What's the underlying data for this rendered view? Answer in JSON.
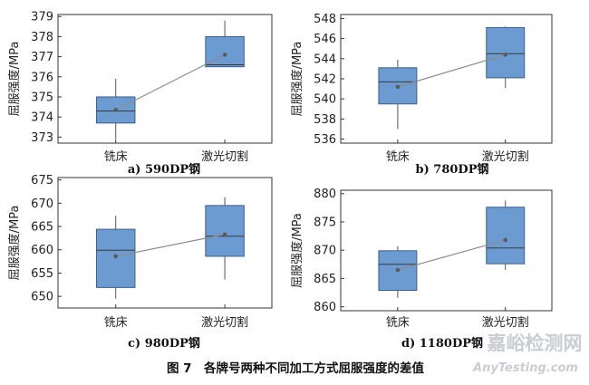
{
  "figure": {
    "caption": "图 7　各牌号两种不同加工方式屈服强度的差值",
    "watermark": {
      "cn": "嘉峪检测网",
      "en": "AnyTesting.com"
    }
  },
  "style": {
    "box_fill": "#6b9bd1",
    "box_stroke": "#3c5f8c",
    "line": "#8c8c8c",
    "mean": "#5a5a5a"
  },
  "chart_data": [
    {
      "type": "box",
      "subtitle": "a) 590DP钢",
      "ylabel": "屈服强度/MPa",
      "categories": [
        "铣床",
        "激光切割"
      ],
      "ylim": [
        372.7,
        379.1
      ],
      "yticks": [
        373,
        374,
        375,
        376,
        377,
        378,
        379
      ],
      "boxes": [
        {
          "min": 372.9,
          "q1": 373.7,
          "median": 374.3,
          "q3": 375.0,
          "max": 375.9,
          "mean": 374.35
        },
        {
          "min": 376.5,
          "q1": 376.5,
          "median": 376.6,
          "q3": 378.0,
          "max": 378.8,
          "mean": 377.1
        }
      ]
    },
    {
      "type": "box",
      "subtitle": "b) 780DP钢",
      "ylabel": "屈服强度/MPa",
      "categories": [
        "铣床",
        "激光切割"
      ],
      "ylim": [
        535.6,
        548.4
      ],
      "yticks": [
        536,
        538,
        540,
        542,
        544,
        546,
        548
      ],
      "boxes": [
        {
          "min": 537.0,
          "q1": 539.5,
          "median": 541.7,
          "q3": 543.1,
          "max": 543.9,
          "mean": 541.2
        },
        {
          "min": 541.1,
          "q1": 542.1,
          "median": 544.5,
          "q3": 547.1,
          "max": 547.2,
          "mean": 544.4
        }
      ]
    },
    {
      "type": "box",
      "subtitle": "c) 980DP钢",
      "ylabel": "屈服强度/MPa",
      "categories": [
        "铣床",
        "激光切割"
      ],
      "ylim": [
        647.5,
        675.5
      ],
      "yticks": [
        650,
        655,
        660,
        665,
        670,
        675
      ],
      "boxes": [
        {
          "min": 649.5,
          "q1": 651.9,
          "median": 659.9,
          "q3": 664.4,
          "max": 667.3,
          "mean": 658.6
        },
        {
          "min": 653.6,
          "q1": 658.6,
          "median": 662.9,
          "q3": 669.5,
          "max": 671.3,
          "mean": 663.3
        }
      ]
    },
    {
      "type": "box",
      "subtitle": "d) 1180DP钢",
      "ylabel": "屈服强度/MPa",
      "categories": [
        "铣床",
        "激光切割"
      ],
      "ylim": [
        859.3,
        880.6
      ],
      "yticks": [
        860,
        865,
        870,
        875,
        880
      ],
      "boxes": [
        {
          "min": 861.6,
          "q1": 862.9,
          "median": 867.5,
          "q3": 869.9,
          "max": 870.7,
          "mean": 866.5
        },
        {
          "min": 866.5,
          "q1": 867.6,
          "median": 870.4,
          "q3": 877.6,
          "max": 878.8,
          "mean": 871.8
        }
      ]
    }
  ]
}
